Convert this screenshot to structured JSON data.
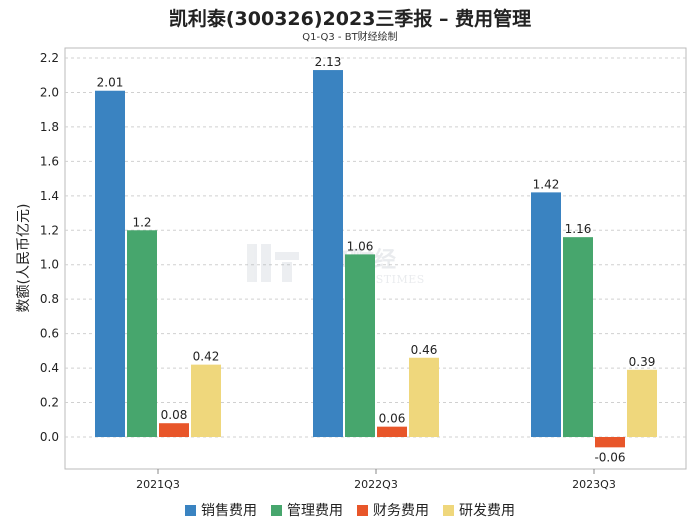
{
  "chart_data": {
    "type": "bar",
    "title": "凯利泰(300326)2023三季报 – 费用管理",
    "subtitle": "Q1-Q3 - BT财经绘制",
    "ylabel": "数额(人民币亿元)",
    "xlabel": "",
    "categories": [
      "2021Q3",
      "2022Q3",
      "2023Q3"
    ],
    "ylim": [
      -0.1,
      2.2
    ],
    "yticks": [
      0.0,
      0.2,
      0.4,
      0.6,
      0.8,
      1.0,
      1.2,
      1.4,
      1.6,
      1.8,
      2.0,
      2.2
    ],
    "ytick_labels": [
      "0.0",
      "0.2",
      "0.4",
      "0.6",
      "0.8",
      "1.0",
      "1.2",
      "1.4",
      "1.6",
      "1.8",
      "2.0",
      "2.2"
    ],
    "grid": true,
    "legend_position": "bottom",
    "series": [
      {
        "name": "销售费用",
        "color": "#3a83c1",
        "values": [
          2.01,
          2.13,
          1.42
        ],
        "labels": [
          "2.01",
          "2.13",
          "1.42"
        ]
      },
      {
        "name": "管理费用",
        "color": "#47a66d",
        "values": [
          1.2,
          1.06,
          1.16
        ],
        "labels": [
          "1.2",
          "1.06",
          "1.16"
        ]
      },
      {
        "name": "财务费用",
        "color": "#e8562a",
        "values": [
          0.08,
          0.06,
          -0.06
        ],
        "labels": [
          "0.08",
          "0.06",
          "-0.06"
        ]
      },
      {
        "name": "研发费用",
        "color": "#efd77c",
        "values": [
          0.42,
          0.46,
          0.39
        ],
        "labels": [
          "0.42",
          "0.46",
          "0.39"
        ]
      }
    ],
    "watermark": "BT财经 BUSINESSTIMES"
  }
}
